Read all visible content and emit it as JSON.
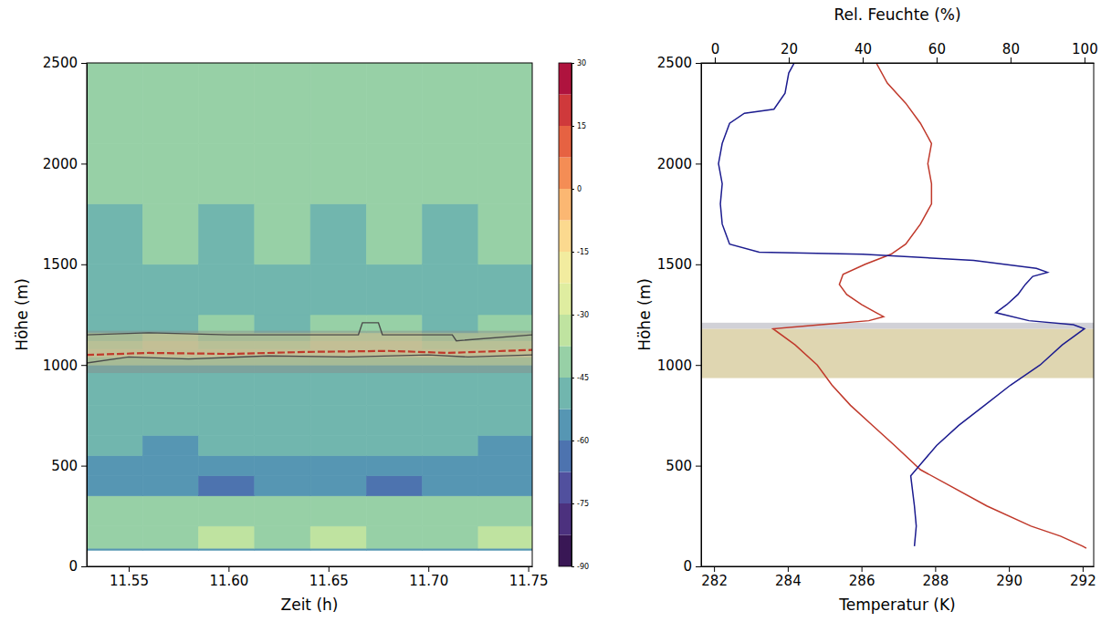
{
  "chart_data": [
    {
      "type": "heatmap",
      "x_label": "Zeit (h)",
      "y_label": "Höhe (m)",
      "xlim": [
        11.529,
        11.752
      ],
      "xticks": [
        11.55,
        {
          "value": 11.6,
          "label": "11.60"
        },
        11.65,
        {
          "value": 11.7,
          "label": "11.70"
        },
        11.75
      ],
      "ylim": [
        0,
        2500
      ],
      "yticks": [
        0,
        500,
        1000,
        1500,
        2000,
        2500
      ],
      "x_edges": [
        11.529,
        11.557,
        11.585,
        11.613,
        11.641,
        11.669,
        11.697,
        11.725,
        11.752
      ],
      "y_edges": [
        80,
        90,
        200,
        350,
        450,
        550,
        650,
        800,
        960,
        1000,
        1040,
        1080,
        1120,
        1160,
        1250,
        1500,
        1800,
        2100,
        2500
      ],
      "values": [
        [
          -60,
          -60,
          -60,
          -60,
          -60,
          -60,
          -60,
          -60
        ],
        [
          -38,
          -40,
          -36,
          -39,
          -37,
          -40,
          -38,
          -36
        ],
        [
          -44,
          -42,
          -45,
          -43,
          -44,
          -42,
          -45,
          -43
        ],
        [
          -60,
          -58,
          -62,
          -60,
          -59,
          -61,
          -58,
          -60
        ],
        [
          -58,
          -57,
          -59,
          -56,
          -58,
          -57,
          -56,
          -55
        ],
        [
          -52,
          -53,
          -51,
          -52,
          -50,
          -52,
          -51,
          -53
        ],
        [
          -50,
          -49,
          -51,
          -50,
          -50,
          -49,
          -51,
          -50
        ],
        [
          -52,
          -51,
          -52,
          -50,
          -51,
          -52,
          -50,
          -51
        ],
        [
          -48,
          -47,
          -46,
          -48,
          -47,
          -46,
          -47,
          -48
        ],
        [
          -35,
          -33,
          -34,
          -36,
          -33,
          -34,
          -35,
          -33
        ],
        [
          -20,
          -18,
          -19,
          -20,
          -18,
          -19,
          -17,
          -19
        ],
        [
          -24,
          -22,
          -23,
          -24,
          -22,
          -21,
          -23,
          -24
        ],
        [
          -32,
          -30,
          -33,
          -31,
          -30,
          -28,
          -32,
          -31
        ],
        [
          -46,
          -46,
          -45,
          -46,
          -44,
          -38,
          -46,
          -45
        ],
        [
          -47,
          -46,
          -47,
          -48,
          -46,
          -47,
          -46,
          -47
        ],
        [
          -46,
          -45,
          -46,
          -45,
          -46,
          -45,
          -46,
          -45
        ],
        [
          -44,
          -45,
          -44,
          -45,
          -44,
          -45,
          -44,
          -45
        ],
        [
          -43,
          -44,
          -43,
          -44,
          -43,
          -44,
          -43,
          -44
        ]
      ],
      "colorbar": {
        "zlim": [
          -90,
          30
        ],
        "zticks": [
          -90,
          -75,
          -60,
          -45,
          -30,
          -15,
          0,
          15,
          30
        ]
      },
      "shaded_ranges": [
        {
          "color": "#8a8a8a",
          "range": [
            960,
            1170
          ]
        }
      ],
      "lines": [
        {
          "color": "#4a4a4a",
          "line_style": "solid",
          "x": [
            11.529,
            11.56,
            11.6,
            11.665,
            11.667,
            11.675,
            11.677,
            11.712,
            11.714,
            11.752
          ],
          "values": [
            1150,
            1160,
            1150,
            1150,
            1210,
            1210,
            1150,
            1150,
            1120,
            1150
          ]
        },
        {
          "color": "#4a4a4a",
          "line_style": "solid",
          "x": [
            11.529,
            11.55,
            11.58,
            11.62,
            11.66,
            11.7,
            11.72,
            11.752
          ],
          "values": [
            1010,
            1040,
            1030,
            1045,
            1040,
            1050,
            1040,
            1050
          ]
        },
        {
          "color": "#c0392b",
          "line_style": "dashed",
          "x": [
            11.529,
            11.56,
            11.6,
            11.64,
            11.68,
            11.71,
            11.752
          ],
          "values": [
            1050,
            1060,
            1055,
            1065,
            1070,
            1060,
            1075
          ]
        }
      ]
    },
    {
      "type": "line",
      "x_label": "Temperatur (K)",
      "x2_label": "Rel. Feuchte (%)",
      "y_label": "Höhe (m)",
      "xlim": [
        281.65,
        292.3
      ],
      "xticks": [
        282,
        284,
        286,
        288,
        290,
        292
      ],
      "x2lim": [
        -3.7,
        102.5
      ],
      "x2ticks": [
        0,
        20,
        40,
        60,
        80,
        100
      ],
      "ylim": [
        0,
        2500
      ],
      "yticks": [
        0,
        500,
        1000,
        1500,
        2000,
        2500
      ],
      "shaded_ranges": [
        {
          "color": "#d9cfa3",
          "range": [
            935,
            1180
          ]
        },
        {
          "color": "#c9c9d0",
          "range": [
            1180,
            1210
          ]
        }
      ],
      "series": [
        {
          "color": "#c0392b",
          "y": [
            90,
            100,
            150,
            200,
            300,
            400,
            480,
            600,
            700,
            800,
            900,
            1000,
            1100,
            1180,
            1200,
            1220,
            1240,
            1260,
            1300,
            1350,
            1400,
            1450,
            1500,
            1550,
            1600,
            1700,
            1800,
            1900,
            2000,
            2100,
            2200,
            2300,
            2400,
            2500
          ],
          "values": [
            292.1,
            292.0,
            291.4,
            290.6,
            289.4,
            288.4,
            287.6,
            286.9,
            286.3,
            285.7,
            285.2,
            284.8,
            284.2,
            283.6,
            284.9,
            286.2,
            286.6,
            286.4,
            286.0,
            285.6,
            285.4,
            285.5,
            286.1,
            286.8,
            287.2,
            287.6,
            287.9,
            287.9,
            287.8,
            287.9,
            287.6,
            287.2,
            286.7,
            286.4
          ]
        },
        {
          "color": "#1c1c8f",
          "axis": "x2",
          "y": [
            100,
            200,
            300,
            450,
            600,
            700,
            800,
            900,
            1000,
            1100,
            1180,
            1200,
            1220,
            1260,
            1300,
            1350,
            1400,
            1440,
            1460,
            1480,
            1520,
            1550,
            1560,
            1600,
            1700,
            1800,
            1900,
            2000,
            2100,
            2200,
            2250,
            2270,
            2350,
            2450,
            2500
          ],
          "values": [
            54,
            54.5,
            54,
            53,
            60,
            66,
            73,
            80,
            88,
            94,
            100,
            97,
            85,
            76,
            79,
            82,
            84,
            86,
            90,
            87,
            70,
            40,
            12,
            4,
            2,
            1.5,
            2,
            1,
            2,
            4,
            8,
            16,
            19,
            20,
            21.5
          ]
        }
      ]
    }
  ]
}
